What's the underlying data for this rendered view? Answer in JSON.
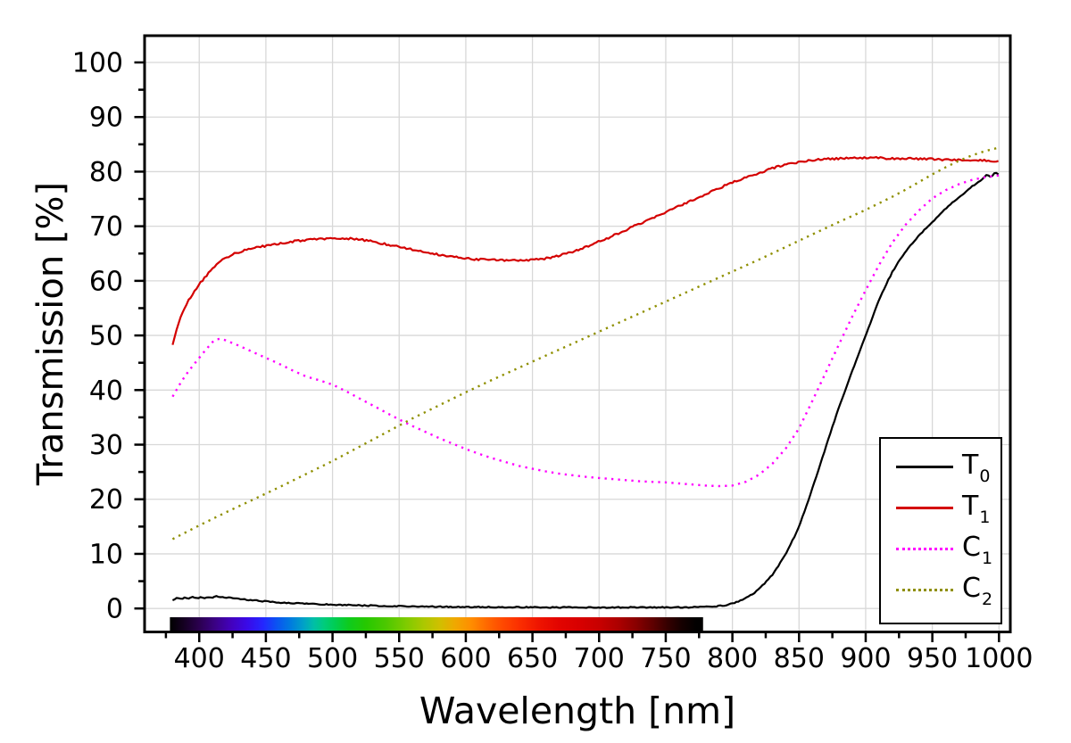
{
  "chart_data": {
    "type": "line",
    "title": "",
    "xlabel": "Wavelength [nm]",
    "ylabel": "Transmission [%]",
    "x_range": [
      359,
      1008.5
    ],
    "y_range": [
      -4.3,
      104.9
    ],
    "x_ticks": [
      400,
      450,
      500,
      550,
      600,
      650,
      700,
      750,
      800,
      850,
      900,
      950,
      1000
    ],
    "x_minor_step": 25,
    "y_ticks": [
      0,
      10,
      20,
      30,
      40,
      50,
      60,
      70,
      80,
      90,
      100
    ],
    "y_minor_step": 5,
    "grid": true,
    "grid_color": "#d8d8d8",
    "frame_color": "#000000",
    "legend_position": "bottom-right",
    "series": [
      {
        "name": "T0",
        "label_main": "T",
        "label_sub": "0",
        "color": "#000000",
        "line_style": "solid",
        "noise": 0.1,
        "points": [
          [
            380,
            1.5
          ],
          [
            383,
            1.9
          ],
          [
            386,
            1.7
          ],
          [
            389,
            2.0
          ],
          [
            392,
            1.8
          ],
          [
            395,
            2.1
          ],
          [
            398,
            1.9
          ],
          [
            401,
            2.0
          ],
          [
            404,
            1.8
          ],
          [
            407,
            2.1
          ],
          [
            410,
            2.0
          ],
          [
            413,
            2.2
          ],
          [
            416,
            2.1
          ],
          [
            419,
            1.9
          ],
          [
            422,
            2.0
          ],
          [
            426,
            1.9
          ],
          [
            430,
            1.8
          ],
          [
            435,
            1.6
          ],
          [
            440,
            1.5
          ],
          [
            445,
            1.4
          ],
          [
            450,
            1.3
          ],
          [
            460,
            1.1
          ],
          [
            470,
            1.0
          ],
          [
            480,
            0.9
          ],
          [
            490,
            0.8
          ],
          [
            500,
            0.7
          ],
          [
            515,
            0.6
          ],
          [
            530,
            0.5
          ],
          [
            550,
            0.42
          ],
          [
            570,
            0.36
          ],
          [
            590,
            0.3
          ],
          [
            610,
            0.27
          ],
          [
            630,
            0.24
          ],
          [
            650,
            0.22
          ],
          [
            670,
            0.2
          ],
          [
            690,
            0.2
          ],
          [
            710,
            0.2
          ],
          [
            730,
            0.2
          ],
          [
            750,
            0.2
          ],
          [
            765,
            0.22
          ],
          [
            775,
            0.25
          ],
          [
            785,
            0.35
          ],
          [
            795,
            0.6
          ],
          [
            800,
            0.9
          ],
          [
            805,
            1.3
          ],
          [
            810,
            1.9
          ],
          [
            815,
            2.6
          ],
          [
            820,
            3.6
          ],
          [
            825,
            4.8
          ],
          [
            830,
            6.2
          ],
          [
            835,
            8.0
          ],
          [
            840,
            10.0
          ],
          [
            845,
            12.4
          ],
          [
            850,
            15.0
          ],
          [
            855,
            18.4
          ],
          [
            860,
            22.0
          ],
          [
            865,
            25.7
          ],
          [
            870,
            29.5
          ],
          [
            875,
            33.3
          ],
          [
            880,
            36.8
          ],
          [
            885,
            40.2
          ],
          [
            890,
            43.5
          ],
          [
            895,
            46.8
          ],
          [
            900,
            50.0
          ],
          [
            905,
            53.3
          ],
          [
            910,
            56.5
          ],
          [
            915,
            59.2
          ],
          [
            920,
            61.6
          ],
          [
            925,
            63.6
          ],
          [
            930,
            65.3
          ],
          [
            935,
            66.9
          ],
          [
            940,
            68.3
          ],
          [
            945,
            69.6
          ],
          [
            950,
            70.8
          ],
          [
            955,
            72.0
          ],
          [
            960,
            73.2
          ],
          [
            965,
            74.3
          ],
          [
            970,
            75.3
          ],
          [
            975,
            76.3
          ],
          [
            980,
            77.3
          ],
          [
            985,
            78.2
          ],
          [
            988,
            78.8
          ],
          [
            991,
            79.6
          ],
          [
            993,
            79.1
          ],
          [
            995,
            79.3
          ],
          [
            997,
            79.8
          ],
          [
            1000,
            79.4
          ]
        ]
      },
      {
        "name": "T1",
        "label_main": "T",
        "label_sub": "1",
        "color": "#d40000",
        "line_style": "solid",
        "noise": 0.18,
        "points": [
          [
            380,
            48.2
          ],
          [
            382,
            50.3
          ],
          [
            384,
            51.8
          ],
          [
            386,
            53.2
          ],
          [
            388,
            54.4
          ],
          [
            390,
            55.4
          ],
          [
            392,
            56.4
          ],
          [
            394,
            57.2
          ],
          [
            396,
            58.0
          ],
          [
            398,
            58.7
          ],
          [
            400,
            59.4
          ],
          [
            403,
            60.3
          ],
          [
            406,
            61.1
          ],
          [
            410,
            62.2
          ],
          [
            414,
            63.1
          ],
          [
            418,
            63.9
          ],
          [
            422,
            64.4
          ],
          [
            426,
            64.9
          ],
          [
            430,
            65.3
          ],
          [
            435,
            65.7
          ],
          [
            440,
            66.0
          ],
          [
            445,
            66.2
          ],
          [
            450,
            66.4
          ],
          [
            460,
            66.8
          ],
          [
            470,
            67.2
          ],
          [
            480,
            67.5
          ],
          [
            490,
            67.7
          ],
          [
            500,
            67.8
          ],
          [
            510,
            67.8
          ],
          [
            520,
            67.6
          ],
          [
            530,
            67.2
          ],
          [
            540,
            66.7
          ],
          [
            550,
            66.2
          ],
          [
            560,
            65.7
          ],
          [
            570,
            65.2
          ],
          [
            580,
            64.8
          ],
          [
            590,
            64.4
          ],
          [
            600,
            64.1
          ],
          [
            610,
            63.9
          ],
          [
            620,
            63.8
          ],
          [
            630,
            63.7
          ],
          [
            640,
            63.7
          ],
          [
            650,
            63.8
          ],
          [
            660,
            64.1
          ],
          [
            670,
            64.6
          ],
          [
            680,
            65.3
          ],
          [
            690,
            66.2
          ],
          [
            700,
            67.2
          ],
          [
            710,
            68.2
          ],
          [
            720,
            69.3
          ],
          [
            730,
            70.4
          ],
          [
            740,
            71.5
          ],
          [
            750,
            72.6
          ],
          [
            760,
            73.7
          ],
          [
            770,
            74.8
          ],
          [
            780,
            75.9
          ],
          [
            790,
            77.0
          ],
          [
            800,
            78.0
          ],
          [
            810,
            78.9
          ],
          [
            820,
            79.8
          ],
          [
            830,
            80.6
          ],
          [
            840,
            81.3
          ],
          [
            850,
            81.8
          ],
          [
            860,
            82.1
          ],
          [
            870,
            82.3
          ],
          [
            880,
            82.4
          ],
          [
            890,
            82.5
          ],
          [
            900,
            82.5
          ],
          [
            910,
            82.5
          ],
          [
            920,
            82.4
          ],
          [
            930,
            82.4
          ],
          [
            940,
            82.3
          ],
          [
            950,
            82.3
          ],
          [
            960,
            82.2
          ],
          [
            970,
            82.2
          ],
          [
            980,
            82.1
          ],
          [
            990,
            82.0
          ],
          [
            1000,
            82.0
          ]
        ]
      },
      {
        "name": "C1",
        "label_main": "C",
        "label_sub": "1",
        "color": "#ff00ff",
        "line_style": "dotted",
        "noise": 0,
        "points": [
          [
            380,
            38.8
          ],
          [
            385,
            40.9
          ],
          [
            390,
            42.8
          ],
          [
            395,
            44.4
          ],
          [
            400,
            45.9
          ],
          [
            405,
            47.4
          ],
          [
            410,
            48.8
          ],
          [
            413,
            49.3
          ],
          [
            416,
            49.4
          ],
          [
            420,
            49.1
          ],
          [
            425,
            48.6
          ],
          [
            430,
            48.1
          ],
          [
            440,
            47.0
          ],
          [
            450,
            45.9
          ],
          [
            460,
            44.8
          ],
          [
            470,
            43.6
          ],
          [
            480,
            42.5
          ],
          [
            490,
            41.8
          ],
          [
            500,
            41.0
          ],
          [
            510,
            39.8
          ],
          [
            520,
            38.5
          ],
          [
            530,
            37.2
          ],
          [
            540,
            35.9
          ],
          [
            550,
            34.6
          ],
          [
            560,
            33.4
          ],
          [
            570,
            32.3
          ],
          [
            580,
            31.2
          ],
          [
            590,
            30.2
          ],
          [
            600,
            29.2
          ],
          [
            610,
            28.3
          ],
          [
            620,
            27.5
          ],
          [
            630,
            26.8
          ],
          [
            640,
            26.1
          ],
          [
            650,
            25.6
          ],
          [
            660,
            25.1
          ],
          [
            670,
            24.7
          ],
          [
            680,
            24.4
          ],
          [
            690,
            24.1
          ],
          [
            700,
            23.9
          ],
          [
            710,
            23.7
          ],
          [
            720,
            23.5
          ],
          [
            730,
            23.3
          ],
          [
            740,
            23.2
          ],
          [
            750,
            23.1
          ],
          [
            760,
            22.9
          ],
          [
            770,
            22.7
          ],
          [
            780,
            22.5
          ],
          [
            790,
            22.4
          ],
          [
            800,
            22.5
          ],
          [
            810,
            23.2
          ],
          [
            820,
            24.5
          ],
          [
            830,
            26.5
          ],
          [
            840,
            29.3
          ],
          [
            850,
            33.0
          ],
          [
            860,
            38.0
          ],
          [
            870,
            43.2
          ],
          [
            880,
            48.4
          ],
          [
            890,
            53.5
          ],
          [
            900,
            58.3
          ],
          [
            910,
            62.9
          ],
          [
            920,
            67.0
          ],
          [
            930,
            70.3
          ],
          [
            940,
            72.9
          ],
          [
            950,
            75.1
          ],
          [
            960,
            76.6
          ],
          [
            970,
            77.7
          ],
          [
            980,
            78.5
          ],
          [
            990,
            79.0
          ],
          [
            1000,
            79.3
          ]
        ]
      },
      {
        "name": "C2",
        "label_main": "C",
        "label_sub": "2",
        "color": "#8f8f00",
        "line_style": "dotted",
        "noise": 0,
        "points": [
          [
            380,
            12.7
          ],
          [
            400,
            15.2
          ],
          [
            420,
            17.6
          ],
          [
            440,
            19.9
          ],
          [
            460,
            22.2
          ],
          [
            480,
            24.6
          ],
          [
            500,
            27.0
          ],
          [
            520,
            29.6
          ],
          [
            540,
            32.2
          ],
          [
            560,
            34.8
          ],
          [
            580,
            37.2
          ],
          [
            600,
            39.6
          ],
          [
            620,
            41.9
          ],
          [
            640,
            44.1
          ],
          [
            660,
            46.3
          ],
          [
            680,
            48.5
          ],
          [
            700,
            50.7
          ],
          [
            720,
            52.9
          ],
          [
            740,
            55.1
          ],
          [
            760,
            57.3
          ],
          [
            780,
            59.5
          ],
          [
            800,
            61.7
          ],
          [
            820,
            63.9
          ],
          [
            840,
            66.2
          ],
          [
            860,
            68.5
          ],
          [
            880,
            70.8
          ],
          [
            900,
            73.0
          ],
          [
            910,
            74.2
          ],
          [
            920,
            75.4
          ],
          [
            930,
            76.7
          ],
          [
            940,
            78.1
          ],
          [
            950,
            79.5
          ],
          [
            960,
            80.8
          ],
          [
            970,
            82.0
          ],
          [
            980,
            83.0
          ],
          [
            990,
            83.8
          ],
          [
            1000,
            84.4
          ]
        ]
      }
    ],
    "spectrum_bar": {
      "wl_start": 378,
      "wl_end": 778,
      "stops": [
        [
          378,
          "#000000"
        ],
        [
          388,
          "#140020"
        ],
        [
          400,
          "#2b004f"
        ],
        [
          412,
          "#3b0185"
        ],
        [
          424,
          "#4301bd"
        ],
        [
          436,
          "#3a0ae8"
        ],
        [
          448,
          "#2427ff"
        ],
        [
          458,
          "#0b53f2"
        ],
        [
          468,
          "#0079e0"
        ],
        [
          478,
          "#00a0c8"
        ],
        [
          486,
          "#00bfa6"
        ],
        [
          494,
          "#00cc7a"
        ],
        [
          502,
          "#00cd52"
        ],
        [
          512,
          "#0ecb1e"
        ],
        [
          525,
          "#26c800"
        ],
        [
          540,
          "#4cc800"
        ],
        [
          555,
          "#7ecb00"
        ],
        [
          568,
          "#aac800"
        ],
        [
          580,
          "#cfc000"
        ],
        [
          592,
          "#f0a800"
        ],
        [
          604,
          "#ff8d00"
        ],
        [
          616,
          "#ff6800"
        ],
        [
          628,
          "#ff4800"
        ],
        [
          640,
          "#fb2f00"
        ],
        [
          655,
          "#ee1400"
        ],
        [
          670,
          "#e20400"
        ],
        [
          685,
          "#d80000"
        ],
        [
          700,
          "#c80000"
        ],
        [
          715,
          "#ab0000"
        ],
        [
          728,
          "#880000"
        ],
        [
          740,
          "#5f0000"
        ],
        [
          752,
          "#330000"
        ],
        [
          762,
          "#150000"
        ],
        [
          772,
          "#030000"
        ],
        [
          778,
          "#000000"
        ]
      ]
    }
  }
}
